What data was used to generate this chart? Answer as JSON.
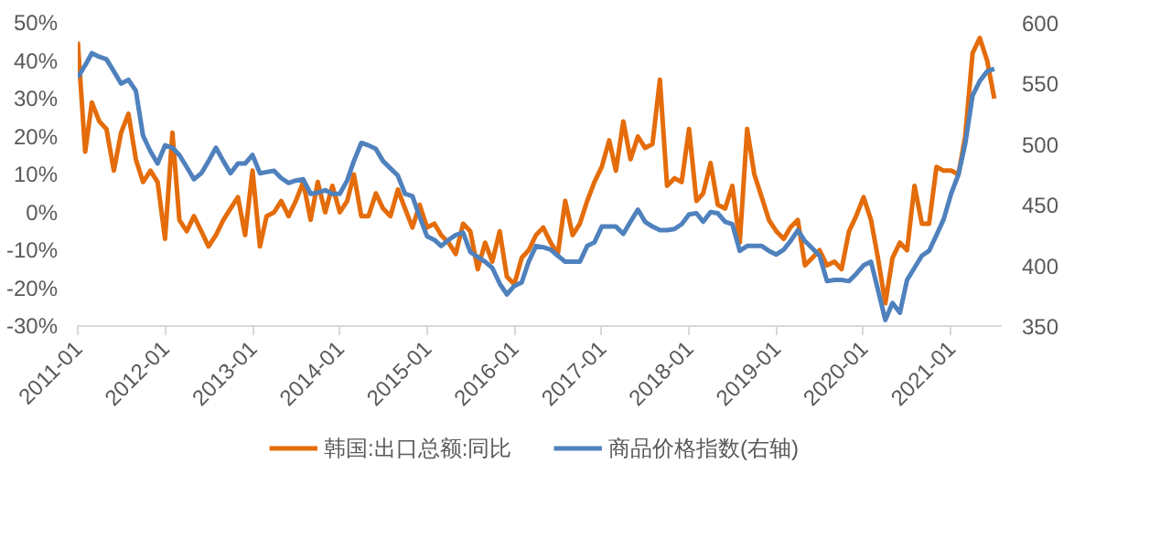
{
  "chart_data": {
    "type": "line",
    "x": [
      "2011-01",
      "2011-02",
      "2011-03",
      "2011-04",
      "2011-05",
      "2011-06",
      "2011-07",
      "2011-08",
      "2011-09",
      "2011-10",
      "2011-11",
      "2011-12",
      "2012-01",
      "2012-02",
      "2012-03",
      "2012-04",
      "2012-05",
      "2012-06",
      "2012-07",
      "2012-08",
      "2012-09",
      "2012-10",
      "2012-11",
      "2012-12",
      "2013-01",
      "2013-02",
      "2013-03",
      "2013-04",
      "2013-05",
      "2013-06",
      "2013-07",
      "2013-08",
      "2013-09",
      "2013-10",
      "2013-11",
      "2013-12",
      "2014-01",
      "2014-02",
      "2014-03",
      "2014-04",
      "2014-05",
      "2014-06",
      "2014-07",
      "2014-08",
      "2014-09",
      "2014-10",
      "2014-11",
      "2014-12",
      "2015-01",
      "2015-02",
      "2015-03",
      "2015-04",
      "2015-05",
      "2015-06",
      "2015-07",
      "2015-08",
      "2015-09",
      "2015-10",
      "2015-11",
      "2015-12",
      "2016-01",
      "2016-02",
      "2016-03",
      "2016-04",
      "2016-05",
      "2016-06",
      "2016-07",
      "2016-08",
      "2016-09",
      "2016-10",
      "2016-11",
      "2016-12",
      "2017-01",
      "2017-02",
      "2017-03",
      "2017-04",
      "2017-05",
      "2017-06",
      "2017-07",
      "2017-08",
      "2017-09",
      "2017-10",
      "2017-11",
      "2017-12",
      "2018-01",
      "2018-02",
      "2018-03",
      "2018-04",
      "2018-05",
      "2018-06",
      "2018-07",
      "2018-08",
      "2018-09",
      "2018-10",
      "2018-11",
      "2018-12",
      "2019-01",
      "2019-02",
      "2019-03",
      "2019-04",
      "2019-05",
      "2019-06",
      "2019-07",
      "2019-08",
      "2019-09",
      "2019-10",
      "2019-11",
      "2019-12",
      "2020-01",
      "2020-02",
      "2020-03",
      "2020-04",
      "2020-05",
      "2020-06",
      "2020-07",
      "2020-08",
      "2020-09",
      "2020-10",
      "2020-11",
      "2020-12",
      "2021-01",
      "2021-02",
      "2021-03",
      "2021-04",
      "2021-05",
      "2021-06",
      "2021-07"
    ],
    "series": [
      {
        "name": "韩国:出口总额:同比",
        "color": "#e46c0a",
        "values": [
          45,
          16,
          29,
          24,
          22,
          11,
          21,
          26,
          14,
          8,
          11,
          8,
          -7,
          21,
          -2,
          -5,
          -1,
          -5,
          -9,
          -6,
          -2,
          1,
          4,
          -6,
          11,
          -9,
          -1,
          0,
          3,
          -1,
          3,
          8,
          -2,
          8,
          0,
          7,
          0,
          3,
          10,
          -1,
          -1,
          5,
          1,
          -1,
          6,
          1,
          -4,
          2,
          -4,
          -3,
          -6,
          -8,
          -11,
          -3,
          -5,
          -15,
          -8,
          -13,
          -5,
          -17,
          -19,
          -12,
          -10,
          -6,
          -4,
          -8,
          -11,
          3,
          -6,
          -3,
          3,
          8,
          12,
          19,
          11,
          24,
          14,
          20,
          17,
          18,
          35,
          7,
          9,
          8,
          22,
          3,
          5,
          13,
          2,
          1,
          7,
          -8,
          22,
          10,
          4,
          -2,
          -5,
          -7,
          -4,
          -2,
          -14,
          -12,
          -10,
          -14,
          -13,
          -15,
          -5,
          -1,
          4,
          -2,
          -12,
          -24,
          -12,
          -8,
          -10,
          7,
          -3,
          -3,
          12,
          11,
          11,
          10,
          20,
          42,
          46,
          40,
          30
        ]
      },
      {
        "name": "商品价格指数(右轴)",
        "color": "#4f81bd",
        "axis": "y2",
        "values": [
          555,
          565,
          575,
          572,
          570,
          560,
          550,
          553,
          544,
          507,
          494,
          484,
          499,
          497,
          491,
          481,
          471,
          476,
          486,
          497,
          486,
          476,
          484,
          484,
          491,
          476,
          477,
          478,
          472,
          468,
          470,
          471,
          459,
          460,
          462,
          459,
          459,
          470,
          486,
          501,
          499,
          496,
          486,
          480,
          474,
          459,
          457,
          440,
          424,
          421,
          416,
          421,
          425,
          427,
          411,
          407,
          403,
          398,
          385,
          376,
          383,
          386,
          403,
          416,
          415,
          413,
          408,
          403,
          403,
          403,
          416,
          419,
          432,
          432,
          432,
          426,
          436,
          446,
          436,
          432,
          429,
          429,
          430,
          434,
          442,
          443,
          436,
          444,
          443,
          436,
          434,
          412,
          416,
          416,
          416,
          412,
          409,
          413,
          420,
          429,
          420,
          414,
          408,
          387,
          388,
          388,
          387,
          393,
          400,
          403,
          380,
          355,
          369,
          361,
          388,
          398,
          408,
          412,
          425,
          438,
          459,
          475,
          500,
          540,
          552,
          560,
          562
        ]
      }
    ],
    "xlim": [
      "2011-01",
      "2021-08"
    ],
    "xticks": [
      "2011-01",
      "2012-01",
      "2013-01",
      "2014-01",
      "2015-01",
      "2016-01",
      "2017-01",
      "2018-01",
      "2019-01",
      "2020-01",
      "2021-01"
    ],
    "ylim": [
      -30,
      50
    ],
    "yticks": [
      {
        "value": -30,
        "label": "-30%"
      },
      {
        "value": -20,
        "label": "-20%"
      },
      {
        "value": -10,
        "label": "-10%"
      },
      {
        "value": 0,
        "label": "0%"
      },
      {
        "value": 10,
        "label": "10%"
      },
      {
        "value": 20,
        "label": "20%"
      },
      {
        "value": 30,
        "label": "30%"
      },
      {
        "value": 40,
        "label": "40%"
      },
      {
        "value": 50,
        "label": "50%"
      }
    ],
    "y2lim": [
      350,
      600
    ],
    "y2ticks": [
      350,
      400,
      450,
      500,
      550,
      600
    ],
    "legend": "bottom",
    "grid": false,
    "line_style": "solid"
  }
}
